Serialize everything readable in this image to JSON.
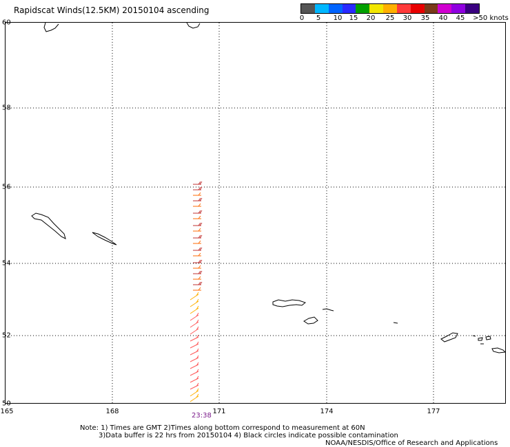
{
  "title": "Rapidscat Winds(12.5KM) 20150104 ascending",
  "scale": {
    "labels": [
      "0",
      "5",
      "10",
      "15",
      "20",
      "25",
      "30",
      "35",
      "40",
      "45",
      ">50 knots"
    ],
    "colors": [
      "#666666",
      "#00b7ff",
      "#0070ff",
      "#2a2aff",
      "#00b000",
      "#f2e600",
      "#ffb000",
      "#ff5a00",
      "#e80000",
      "#7a4a2a",
      "#b000b0",
      "#7a00ff",
      "#5a00b0"
    ]
  },
  "axes": {
    "lat_labels": [
      "60",
      "58",
      "56",
      "54",
      "52",
      "50"
    ],
    "lon_labels": [
      "165",
      "168",
      "171",
      "174",
      "177"
    ]
  },
  "time_label": "23:38",
  "notes": {
    "line1": "Note: 1) Times are GMT 2)Times along bottom correspond to measurement at 60N",
    "line2": "3)Data buffer is 22 hrs from 20150104 4) Black circles indicate possible contamination",
    "line3": "NOAA/NESDIS/Office of Research and Applications"
  },
  "wind_barbs_colors": [
    "#e80000",
    "#ff5a00",
    "#ffb000",
    "#f2e600",
    "#c04000"
  ]
}
